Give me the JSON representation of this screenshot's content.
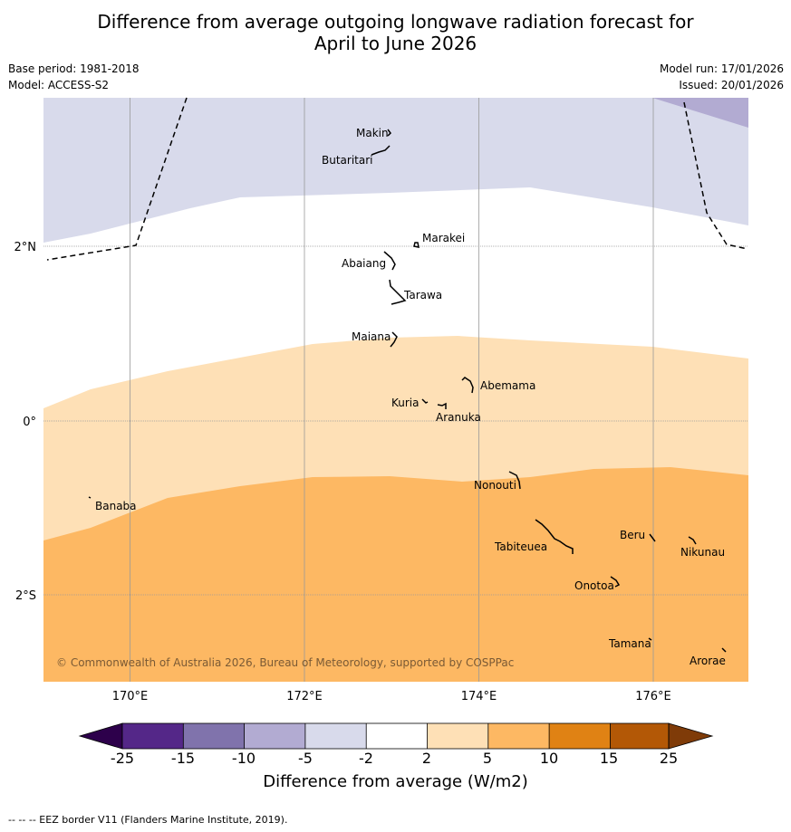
{
  "title_line1": "Difference from average outgoing longwave radiation forecast for",
  "title_line2": "April to June 2026",
  "base_period": "Base period: 1981-2018",
  "model": "Model: ACCESS-S2",
  "model_run": "Model run: 17/01/2026",
  "issued": "Issued: 20/01/2026",
  "copyright": "© Commonwealth of Australia 2026, Bureau of Meteorology, supported by COSPPac",
  "axis": {
    "lon_labels": [
      "170°E",
      "172°E",
      "174°E",
      "176°E"
    ],
    "lat_labels": [
      "2°N",
      "0°",
      "2°S"
    ]
  },
  "islands": [
    "Makin",
    "Butaritari",
    "Marakei",
    "Abaiang",
    "Tarawa",
    "Maiana",
    "Abemama",
    "Kuria",
    "Aranuka",
    "Nonouti",
    "Banaba",
    "Tabiteuea",
    "Beru",
    "Nikunau",
    "Onotoa",
    "Tamana",
    "Arorae"
  ],
  "colorbar": {
    "title": "Difference from average (W/m2)",
    "ticks": [
      "-25",
      "-15",
      "-10",
      "-5",
      "-2",
      "2",
      "5",
      "10",
      "15",
      "25"
    ],
    "colors": [
      "#2d004b",
      "#542788",
      "#8073ac",
      "#b2abd2",
      "#d8daeb",
      "#ffffff",
      "#fee0b6",
      "#fdb863",
      "#e08214",
      "#b35806",
      "#7f3b08"
    ]
  },
  "map_data": {
    "lon_range": [
      169,
      177.1
    ],
    "lat_range": [
      -3.0,
      3.7
    ],
    "categories": [
      {
        "range": "-5 to -2",
        "color": "#d8daeb",
        "region": "north"
      },
      {
        "range": "-10 to -5",
        "color": "#b2abd2",
        "region": "far north-east corner"
      },
      {
        "range": "-2 to 2",
        "color": "#ffffff",
        "region": "central band"
      },
      {
        "range": "2 to 5",
        "color": "#fee0b6",
        "region": "equatorial band"
      },
      {
        "range": "5 to 10",
        "color": "#fdb863",
        "region": "south"
      }
    ]
  },
  "footnote": "--  --  -- EEZ border V11 (Flanders Marine Institute, 2019)."
}
